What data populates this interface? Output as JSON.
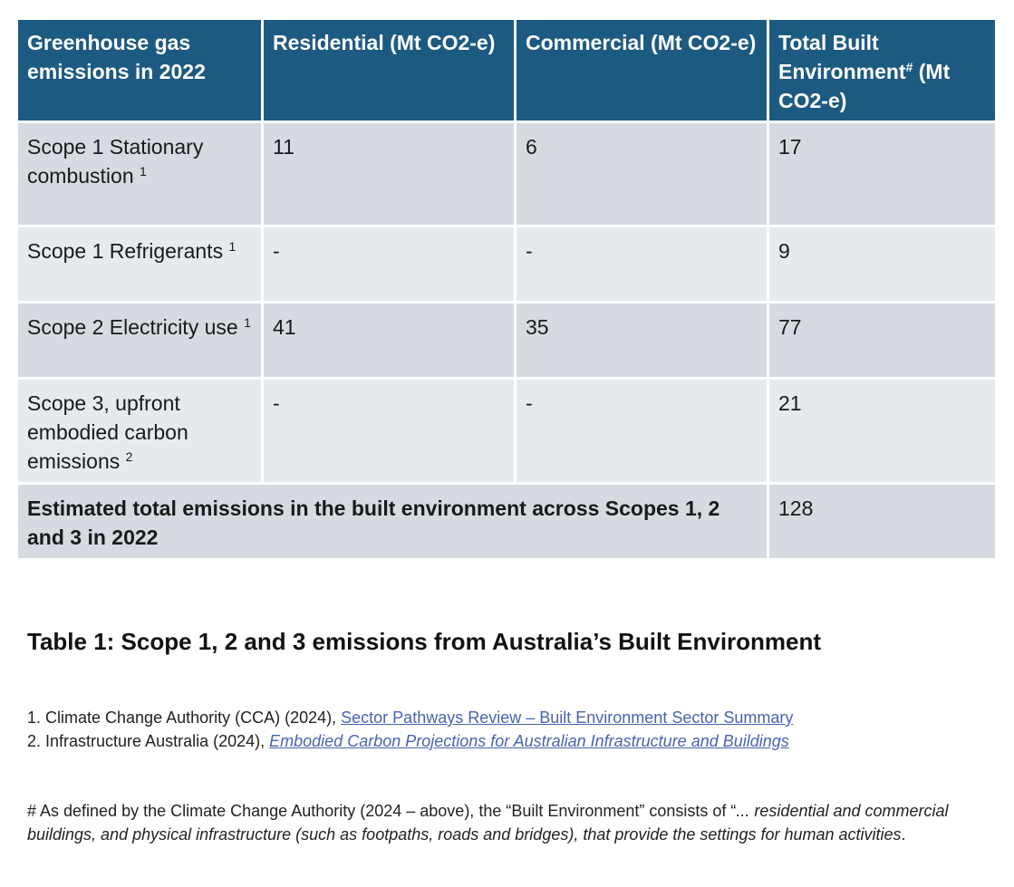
{
  "table": {
    "headers": [
      "Greenhouse gas emissions in 2022",
      "Residential (Mt CO2-e)",
      "Commercial (Mt CO2-e)",
      "Total Built Environment",
      "#",
      " (Mt CO2-e)"
    ],
    "rows": [
      {
        "label": "Scope 1 Stationary combustion",
        "sup": "1",
        "residential": "11",
        "commercial": "6",
        "total": "17"
      },
      {
        "label": "Scope 1 Refrigerants",
        "sup": "1",
        "residential": "-",
        "commercial": "-",
        "total": "9"
      },
      {
        "label": "Scope 2 Electricity use",
        "sup": "1",
        "residential": "41",
        "commercial": "35",
        "total": "77"
      },
      {
        "label": "Scope 3, upfront embodied carbon emissions",
        "sup": "2",
        "residential": "-",
        "commercial": "-",
        "total": "21"
      }
    ],
    "total_row": {
      "label": "Estimated total emissions in the built environment across Scopes 1, 2 and 3 in 2022",
      "value": "128"
    }
  },
  "caption": "Table 1: Scope 1, 2 and 3 emissions from Australia’s Built Environment",
  "references": [
    {
      "prefix": "1. Climate Change Authority (CCA) (2024), ",
      "link": "Sector Pathways Review – Built Environment Sector Summary"
    },
    {
      "prefix": "2. Infrastructure Australia (2024), ",
      "link": "Embodied Carbon Projections for Australian Infrastructure and Buildings"
    }
  ],
  "note": {
    "prefix": "# As defined by the Climate Change Authority (2024 – above), the “Built Environment” consists of “",
    "quote": "... residential and commercial buildings, and physical infrastructure (such as footpaths, roads and bridges), that provide the settings for human activities",
    "suffix": "."
  },
  "colors": {
    "header_bg": "#1d5a82",
    "row_dark": "#d5dbe1",
    "row_light": "#e6eaee",
    "link": "#4a63b0"
  }
}
